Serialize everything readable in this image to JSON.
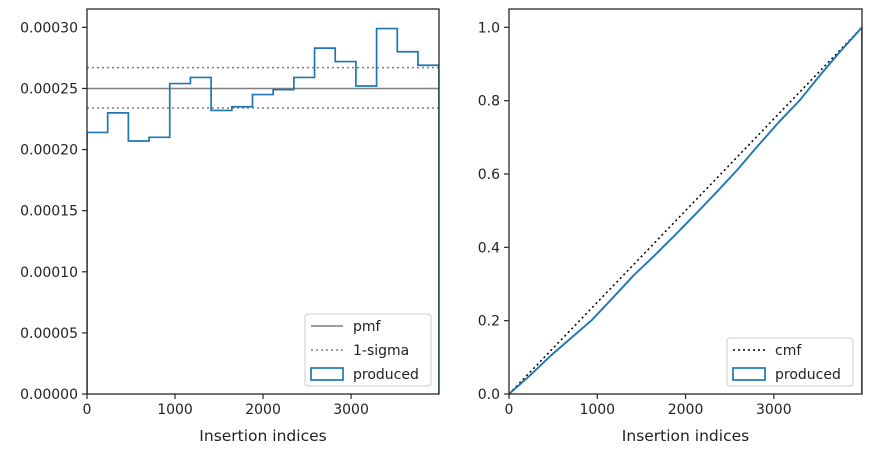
{
  "chart_data": [
    {
      "type": "histogram-step",
      "xlabel": "Insertion indices",
      "ylabel": "",
      "xlim": [
        0,
        3999
      ],
      "ylim": [
        0,
        0.000315
      ],
      "xticks": [
        0,
        1000,
        2000,
        3000
      ],
      "yticks": [
        0,
        5e-05,
        0.0001,
        0.00015,
        0.0002,
        0.00025,
        0.0003
      ],
      "ytick_labels": [
        "0.00000",
        "0.00005",
        "0.00010",
        "0.00015",
        "0.00020",
        "0.00025",
        "0.00030"
      ],
      "grid": false,
      "legend_position": "lower right",
      "series": [
        {
          "name": "pmf",
          "kind": "hline",
          "value": 0.00025,
          "color": "#7f7f7f",
          "style": "solid"
        },
        {
          "name": "1-sigma",
          "kind": "hlines",
          "values": [
            0.000234,
            0.000267
          ],
          "color": "#7f7f7f",
          "style": "dotted"
        },
        {
          "name": "produced",
          "kind": "step",
          "color": "#1f77b4",
          "bin_edges": [
            0,
            235,
            470,
            705,
            940,
            1175,
            1410,
            1645,
            1880,
            2115,
            2350,
            2585,
            2820,
            3055,
            3290,
            3525,
            3760,
            3999
          ],
          "values": [
            0.000214,
            0.00023,
            0.000207,
            0.00021,
            0.000254,
            0.000259,
            0.000232,
            0.000235,
            0.000245,
            0.000249,
            0.000259,
            0.000283,
            0.000272,
            0.000252,
            0.000299,
            0.00028,
            0.000269
          ]
        }
      ]
    },
    {
      "type": "line",
      "xlabel": "Insertion indices",
      "ylabel": "",
      "xlim": [
        0,
        3999
      ],
      "ylim": [
        0,
        1.05
      ],
      "xticks": [
        0,
        1000,
        2000,
        3000
      ],
      "yticks": [
        0,
        0.2,
        0.4,
        0.6,
        0.8,
        1.0
      ],
      "ytick_labels": [
        "0.0",
        "0.2",
        "0.4",
        "0.6",
        "0.8",
        "1.0"
      ],
      "grid": false,
      "legend_position": "lower right",
      "series": [
        {
          "name": "cmf",
          "kind": "line",
          "color": "#000000",
          "style": "dotted",
          "x": [
            0,
            3999
          ],
          "y": [
            0,
            1.0
          ]
        },
        {
          "name": "produced",
          "kind": "step-line",
          "color": "#1f77b4",
          "x": [
            0,
            235,
            470,
            705,
            940,
            1175,
            1410,
            1645,
            1880,
            2115,
            2350,
            2585,
            2820,
            3055,
            3290,
            3525,
            3760,
            3999
          ],
          "y": [
            0,
            0.05,
            0.104,
            0.153,
            0.202,
            0.262,
            0.323,
            0.377,
            0.433,
            0.491,
            0.55,
            0.611,
            0.677,
            0.741,
            0.8,
            0.87,
            0.936,
            1.0
          ]
        }
      ]
    }
  ]
}
